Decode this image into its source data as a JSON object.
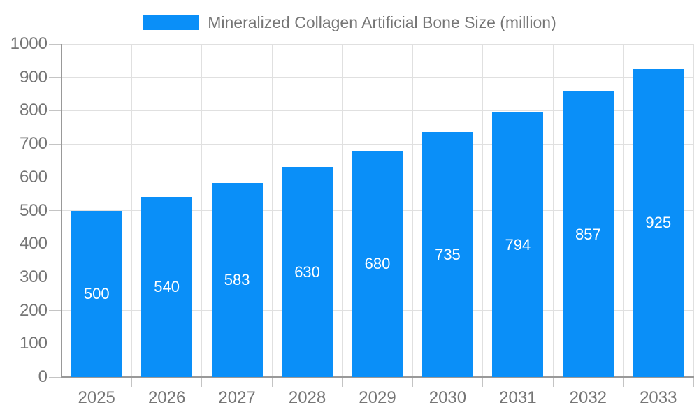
{
  "chart_data": {
    "type": "bar",
    "title": "Mineralized Collagen Artificial Bone Size (million)",
    "categories": [
      "2025",
      "2026",
      "2027",
      "2028",
      "2029",
      "2030",
      "2031",
      "2032",
      "2033"
    ],
    "values": [
      500,
      540,
      583,
      630,
      680,
      735,
      794,
      857,
      925
    ],
    "series": [
      {
        "name": "Mineralized Collagen Artificial Bone Size (million)",
        "values": [
          500,
          540,
          583,
          630,
          680,
          735,
          794,
          857,
          925
        ]
      }
    ],
    "xlabel": "",
    "ylabel": "",
    "ylim": [
      0,
      1000
    ],
    "ytick_step": 100,
    "ytick_labels": [
      "0",
      "100",
      "200",
      "300",
      "400",
      "500",
      "600",
      "700",
      "800",
      "900",
      "1000"
    ],
    "grid": "on",
    "legend_position": "top",
    "bar_labels_inside": true,
    "colors": {
      "bar": "#0a8ff8",
      "bar_value_text": "#ffffff",
      "axis_text": "#757575",
      "legend_text": "#757575",
      "axis_line": "#999999",
      "gridline": "#e0e0e0",
      "tick": "#c4c4c4",
      "background": "#ffffff"
    }
  }
}
